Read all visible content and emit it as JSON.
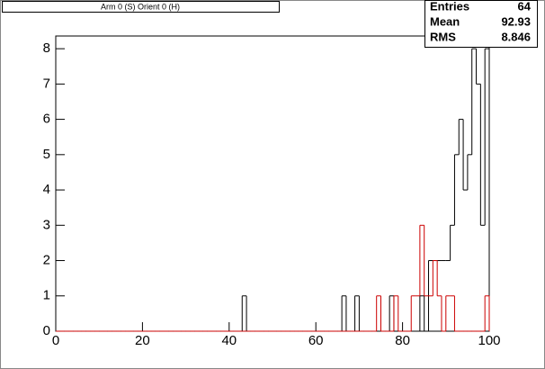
{
  "chart_data": {
    "type": "histogram",
    "title": "Arm 0 (S) Orient 0 (H)",
    "bins": [
      0,
      1,
      2,
      3,
      4,
      5,
      6,
      7,
      8,
      9,
      10,
      11,
      12,
      13,
      14,
      15,
      16,
      17,
      18,
      19,
      20,
      21,
      22,
      23,
      24,
      25,
      26,
      27,
      28,
      29,
      30,
      31,
      32,
      33,
      34,
      35,
      36,
      37,
      38,
      39,
      40,
      41,
      42,
      43,
      44,
      45,
      46,
      47,
      48,
      49,
      50,
      51,
      52,
      53,
      54,
      55,
      56,
      57,
      58,
      59,
      60,
      61,
      62,
      63,
      64,
      65,
      66,
      67,
      68,
      69,
      70,
      71,
      72,
      73,
      74,
      75,
      76,
      77,
      78,
      79,
      80,
      81,
      82,
      83,
      84,
      85,
      86,
      87,
      88,
      89,
      90,
      91,
      92,
      93,
      94,
      95,
      96,
      97,
      98,
      99,
      100
    ],
    "series": [
      {
        "color": "#000000",
        "values": [
          0,
          0,
          0,
          0,
          0,
          0,
          0,
          0,
          0,
          0,
          0,
          0,
          0,
          0,
          0,
          0,
          0,
          0,
          0,
          0,
          0,
          0,
          0,
          0,
          0,
          0,
          0,
          0,
          0,
          0,
          0,
          0,
          0,
          0,
          0,
          0,
          0,
          0,
          0,
          0,
          0,
          0,
          0,
          1,
          0,
          0,
          0,
          0,
          0,
          0,
          0,
          0,
          0,
          0,
          0,
          0,
          0,
          0,
          0,
          0,
          0,
          0,
          0,
          0,
          0,
          0,
          1,
          0,
          0,
          1,
          0,
          0,
          0,
          0,
          0,
          0,
          0,
          1,
          0,
          0,
          0,
          0,
          0,
          0,
          1,
          0,
          2,
          2,
          2,
          2,
          2,
          3,
          5,
          6,
          4,
          5,
          8,
          7,
          3,
          8
        ]
      },
      {
        "color": "#cc0000",
        "values": [
          0,
          0,
          0,
          0,
          0,
          0,
          0,
          0,
          0,
          0,
          0,
          0,
          0,
          0,
          0,
          0,
          0,
          0,
          0,
          0,
          0,
          0,
          0,
          0,
          0,
          0,
          0,
          0,
          0,
          0,
          0,
          0,
          0,
          0,
          0,
          0,
          0,
          0,
          0,
          0,
          0,
          0,
          0,
          0,
          0,
          0,
          0,
          0,
          0,
          0,
          0,
          0,
          0,
          0,
          0,
          0,
          0,
          0,
          0,
          0,
          0,
          0,
          0,
          0,
          0,
          0,
          0,
          0,
          0,
          0,
          0,
          0,
          0,
          0,
          1,
          0,
          0,
          0,
          1,
          0,
          0,
          0,
          1,
          1,
          3,
          1,
          1,
          2,
          1,
          0,
          1,
          1,
          0,
          0,
          0,
          0,
          0,
          0,
          0,
          1
        ]
      }
    ],
    "xlim": [
      0,
      100
    ],
    "xticks": [
      0,
      20,
      40,
      60,
      80,
      100
    ],
    "ylim": [
      0,
      8.36
    ],
    "yticks": [
      0,
      1,
      2,
      3,
      4,
      5,
      6,
      7,
      8
    ],
    "stats": [
      {
        "label": "Entries",
        "value": 64
      },
      {
        "label": "Mean",
        "value": 92.93
      },
      {
        "label": "RMS",
        "value": 8.846
      }
    ]
  }
}
